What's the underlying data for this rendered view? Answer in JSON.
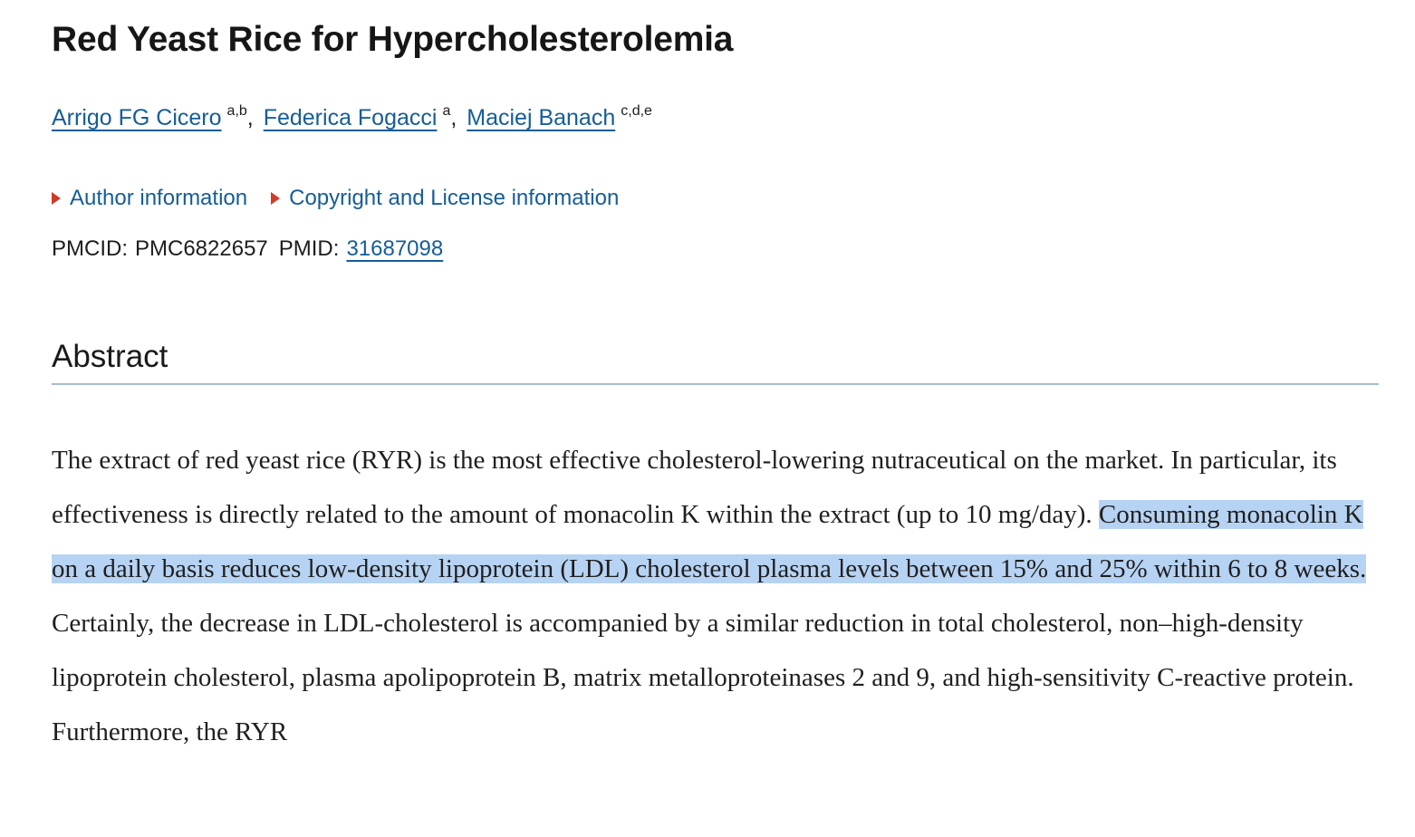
{
  "theme": {
    "colors": {
      "link_blue": "#155d97",
      "marker_red": "#cf3c28",
      "highlight_blue": "#b7d3f3",
      "divider_gray_blue": "#a5bdd0"
    }
  },
  "article": {
    "title": "Red Yeast Rice for Hypercholesterolemia",
    "authors": [
      {
        "name": "Arrigo FG Cicero",
        "sup": "a,b",
        "sep": ", "
      },
      {
        "name": "Federica Fogacci",
        "sup": "a",
        "sep": ", "
      },
      {
        "name": "Maciej Banach",
        "sup": "c,d,e",
        "sep": ""
      }
    ],
    "links": {
      "author_information": "Author information",
      "copyright_information": "Copyright and License information"
    },
    "ids": {
      "pmcid_label": "PMCID:",
      "pmcid_value": "PMC6822657",
      "pmid_label": "PMID:",
      "pmid_value": "31687098"
    },
    "abstract": {
      "heading": "Abstract",
      "text_before_highlight": "The extract of red yeast rice (RYR) is the most effective cholesterol-lowering nutraceutical on the market. In particular, its effectiveness is directly related to the amount of monacolin K within the extract (up to 10 mg/day). ",
      "highlighted_text": "Consuming monacolin K on a daily basis reduces low-density lipoprotein (LDL) cholesterol plasma levels between 15% and 25% within 6 to 8 weeks.",
      "text_after_highlight": " Certainly, the decrease in LDL-cholesterol is accompanied by a similar reduction in total cholesterol, non–high-density lipoprotein cholesterol, plasma apolipoprotein B, matrix metalloproteinases 2 and 9, and high-sensitivity C-reactive protein. Furthermore, the RYR"
    }
  }
}
